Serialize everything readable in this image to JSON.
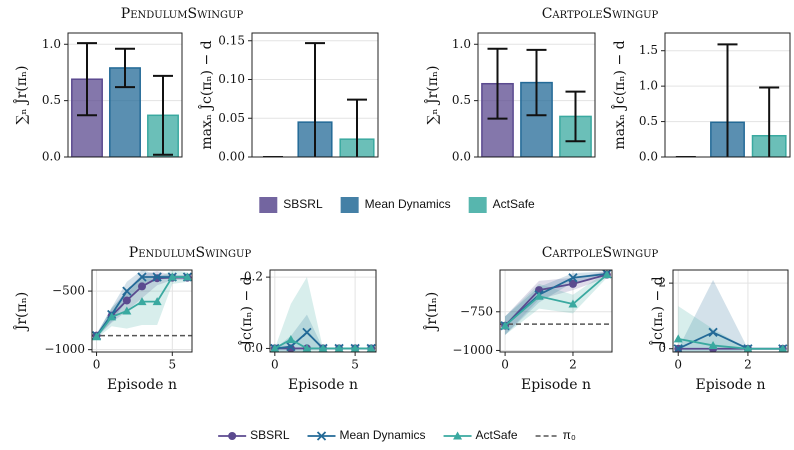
{
  "chart_data": [
    {
      "type": "bar",
      "title": "PendulumSwingup",
      "y_label": "∑ₙ Ĵr(πₙ)",
      "series": [
        {
          "name": "SBSRL",
          "color": "#5b4a8f",
          "values": [
            0.69
          ],
          "errors": [
            0.32
          ]
        },
        {
          "name": "Mean Dynamics",
          "color": "#236a97",
          "values": [
            0.79
          ],
          "errors": [
            0.17
          ]
        },
        {
          "name": "ActSafe",
          "color": "#3aa9a0",
          "values": [
            0.37
          ],
          "errors": [
            0.35
          ]
        }
      ],
      "ylim": [
        0,
        1.1
      ],
      "yticks": [
        {
          "value": 0,
          "label": "0.0"
        },
        {
          "value": 0.5,
          "label": "0.5"
        },
        {
          "value": 1,
          "label": "1.0"
        }
      ],
      "grid": true,
      "legend": "below"
    },
    {
      "type": "bar",
      "y_label": "maxₙ Ĵc(πₙ) − d",
      "series": [
        {
          "color": "#5b4a8f",
          "values": [
            0
          ],
          "errors": [
            0
          ]
        },
        {
          "color": "#236a97",
          "values": [
            0.045
          ],
          "errors": [
            0.102
          ]
        },
        {
          "color": "#3aa9a0",
          "values": [
            0.023
          ],
          "errors": [
            0.051
          ]
        }
      ],
      "ylim": [
        0,
        0.16
      ],
      "yticks": [
        {
          "value": 0,
          "label": "0.00"
        },
        {
          "value": 0.05,
          "label": "0.05"
        },
        {
          "value": 0.1,
          "label": "0.10"
        },
        {
          "value": 0.15,
          "label": "0.15"
        }
      ],
      "grid": true
    },
    {
      "type": "bar",
      "title": "CartpoleSwingup",
      "y_label": "∑ₙ Ĵr(πₙ)",
      "series": [
        {
          "color": "#5b4a8f",
          "values": [
            0.65
          ],
          "errors": [
            0.31
          ]
        },
        {
          "color": "#236a97",
          "values": [
            0.66
          ],
          "errors": [
            0.29
          ]
        },
        {
          "color": "#3aa9a0",
          "values": [
            0.36
          ],
          "errors": [
            0.22
          ]
        }
      ],
      "ylim": [
        0,
        1.1
      ],
      "yticks": [
        {
          "value": 0,
          "label": "0.0"
        },
        {
          "value": 0.5,
          "label": "0.5"
        },
        {
          "value": 1,
          "label": "1.0"
        }
      ],
      "grid": true
    },
    {
      "type": "bar",
      "y_label": "maxₙ Ĵc(πₙ) − d",
      "series": [
        {
          "color": "#5b4a8f",
          "values": [
            0
          ],
          "errors": [
            0
          ]
        },
        {
          "color": "#236a97",
          "values": [
            0.49
          ],
          "errors": [
            1.1
          ]
        },
        {
          "color": "#3aa9a0",
          "values": [
            0.3
          ],
          "errors": [
            0.68
          ]
        }
      ],
      "ylim": [
        0,
        1.75
      ],
      "yticks": [
        {
          "value": 0,
          "label": "0.0"
        },
        {
          "value": 0.5,
          "label": "0.5"
        },
        {
          "value": 1,
          "label": "1.0"
        },
        {
          "value": 1.5,
          "label": "1.5"
        }
      ],
      "grid": true
    },
    {
      "type": "line",
      "title": "PendulumSwingup",
      "y_label": "Ĵr(πₙ)",
      "x_label": "Episode n",
      "x": [
        0,
        1,
        2,
        3,
        4,
        5,
        6
      ],
      "xlim": [
        -0.3,
        6.3
      ],
      "xticks": [
        0,
        5
      ],
      "ylim": [
        -1020,
        -320
      ],
      "yticks": [
        {
          "value": -1000,
          "label": "−1000"
        },
        {
          "value": -500,
          "label": "−500"
        }
      ],
      "series": [
        {
          "name": "SBSRL",
          "color": "#5b4a8f",
          "marker": "o",
          "values": [
            -880,
            -710,
            -580,
            -460,
            -390,
            -385,
            -385
          ],
          "std": [
            15,
            60,
            90,
            100,
            60,
            20,
            20
          ]
        },
        {
          "name": "Mean Dynamics",
          "color": "#236a97",
          "marker": "x",
          "values": [
            -880,
            -700,
            -500,
            -380,
            -380,
            -380,
            -380
          ],
          "std": [
            15,
            60,
            80,
            60,
            20,
            15,
            15
          ]
        },
        {
          "name": "ActSafe",
          "color": "#3aa9a0",
          "marker": "^",
          "values": [
            -890,
            -720,
            -670,
            -590,
            -590,
            -380,
            -380
          ],
          "std": [
            15,
            80,
            150,
            200,
            200,
            60,
            40
          ]
        }
      ],
      "baseline": {
        "name": "π₀",
        "value": -880,
        "color": "#555555"
      },
      "grid": true,
      "legend": "below"
    },
    {
      "type": "line",
      "y_label": "Ĵc(πₙ) − d",
      "x_label": "Episode n",
      "x": [
        0,
        1,
        2,
        3,
        4,
        5,
        6
      ],
      "xlim": [
        -0.3,
        6.3
      ],
      "xticks": [
        0,
        5
      ],
      "ylim": [
        -0.01,
        0.22
      ],
      "yticks": [
        {
          "value": 0,
          "label": "0.0"
        },
        {
          "value": 0.2,
          "label": "0.2"
        }
      ],
      "series": [
        {
          "color": "#5b4a8f",
          "marker": "o",
          "values": [
            0,
            0,
            0,
            0,
            0,
            0,
            0
          ],
          "std": [
            0,
            0,
            0,
            0,
            0,
            0,
            0
          ]
        },
        {
          "color": "#236a97",
          "marker": "x",
          "values": [
            0,
            0.005,
            0.045,
            0,
            0,
            0,
            0
          ],
          "std": [
            0,
            0.03,
            0.05,
            0,
            0,
            0,
            0
          ]
        },
        {
          "color": "#3aa9a0",
          "marker": "^",
          "values": [
            0,
            0.025,
            0,
            0,
            0,
            0,
            0
          ],
          "std": [
            0,
            0.1,
            0.2,
            0,
            0,
            0,
            0
          ]
        }
      ],
      "grid": true
    },
    {
      "type": "line",
      "title": "CartpoleSwingup",
      "y_label": "Ĵr(πₙ)",
      "x_label": "Episode n",
      "x": [
        0,
        1,
        2,
        3
      ],
      "xlim": [
        -0.15,
        3.15
      ],
      "xticks": [
        0,
        2
      ],
      "ylim": [
        -1010,
        -480
      ],
      "yticks": [
        {
          "value": -1000,
          "label": "−1000"
        },
        {
          "value": -750,
          "label": "−750"
        }
      ],
      "series": [
        {
          "color": "#5b4a8f",
          "marker": "o",
          "values": [
            -840,
            -610,
            -570,
            -510
          ],
          "std": [
            60,
            60,
            40,
            20
          ]
        },
        {
          "color": "#236a97",
          "marker": "x",
          "values": [
            -840,
            -640,
            -530,
            -505
          ],
          "std": [
            60,
            50,
            30,
            15
          ]
        },
        {
          "color": "#3aa9a0",
          "marker": "^",
          "values": [
            -840,
            -650,
            -700,
            -510
          ],
          "std": [
            60,
            80,
            60,
            20
          ]
        }
      ],
      "baseline": {
        "value": -830,
        "color": "#555555"
      },
      "grid": true
    },
    {
      "type": "line",
      "y_label": "Ĵc(πₙ) − d",
      "x_label": "Episode n",
      "x": [
        0,
        1,
        2,
        3
      ],
      "xlim": [
        -0.15,
        3.15
      ],
      "xticks": [
        0,
        2
      ],
      "ylim": [
        -0.1,
        2.4
      ],
      "yticks": [
        0,
        2
      ],
      "series": [
        {
          "color": "#5b4a8f",
          "marker": "o",
          "values": [
            0,
            0,
            0,
            0
          ],
          "std": [
            0,
            0,
            0,
            0
          ]
        },
        {
          "color": "#236a97",
          "marker": "x",
          "values": [
            0,
            0.5,
            0,
            0
          ],
          "std": [
            0,
            1.6,
            0,
            0
          ]
        },
        {
          "color": "#3aa9a0",
          "marker": "^",
          "values": [
            0.3,
            0.1,
            0,
            0
          ],
          "std": [
            1,
            0.5,
            0,
            0
          ]
        }
      ],
      "grid": true
    }
  ]
}
